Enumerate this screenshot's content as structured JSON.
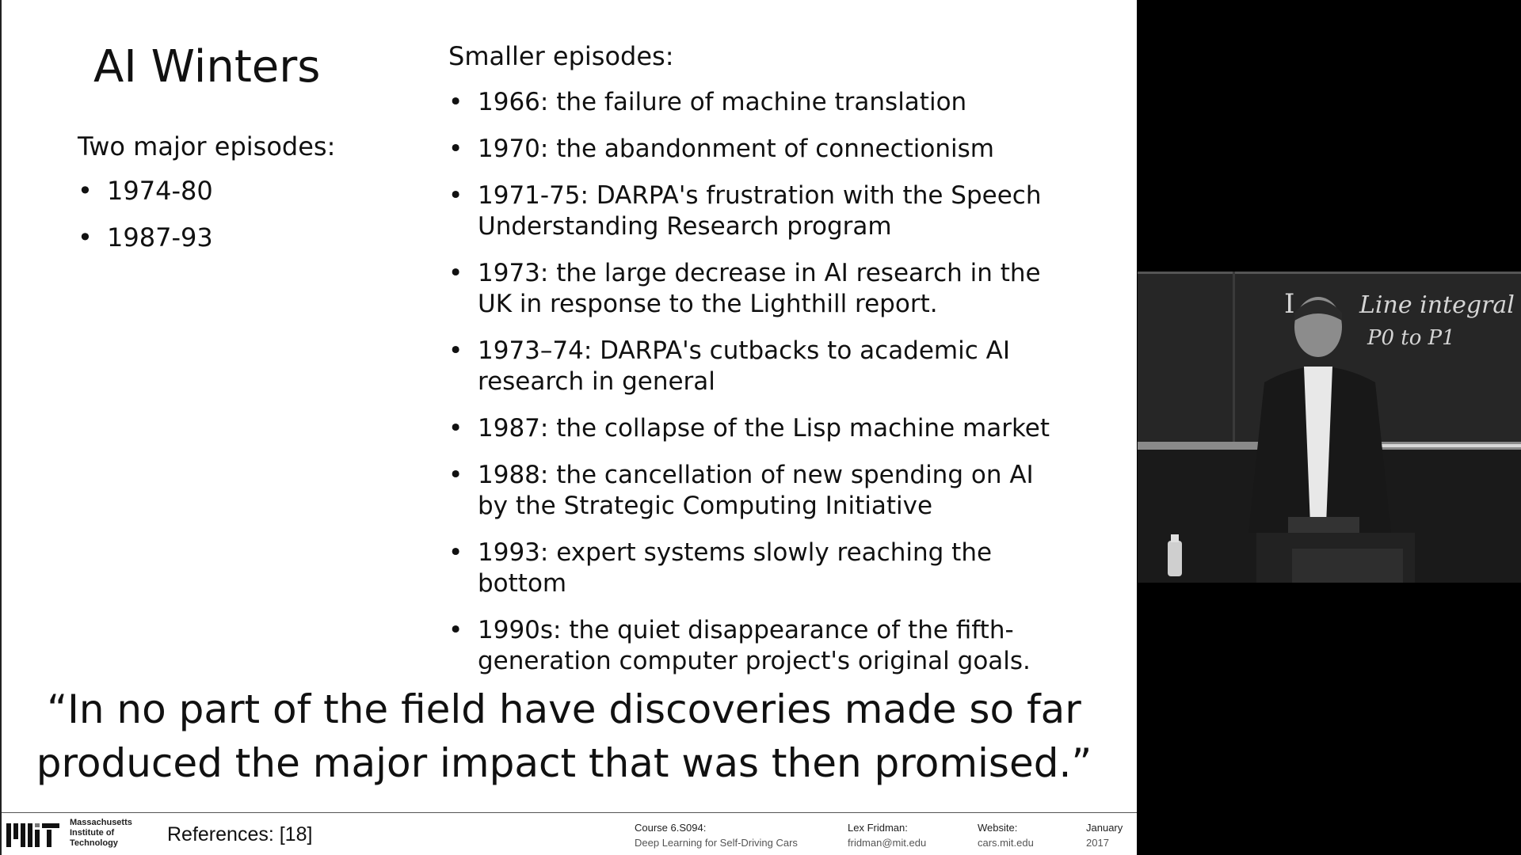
{
  "slide": {
    "title": "AI Winters",
    "left_heading": "Two major episodes:",
    "major_episodes": [
      "1974-80",
      "1987-93"
    ],
    "right_heading": "Smaller episodes:",
    "smaller_episodes": [
      "1966: the failure of machine translation",
      "1970: the abandonment of connectionism",
      "1971-75: DARPA's frustration with the Speech Understanding Research program",
      "1973: the large decrease in AI research in the UK in response to the Lighthill report.",
      "1973–74: DARPA's cutbacks to academic AI research in general",
      "1987: the collapse of the Lisp machine market",
      "1988: the cancellation of new spending on AI by the Strategic Computing Initiative",
      "1993: expert systems slowly reaching the bottom",
      "1990s: the quiet disappearance of the fifth-generation computer project's original goals."
    ],
    "quote": "“In no part of the field have discoveries made so far produced the major impact that was then promised.”"
  },
  "footer": {
    "institute_lines": [
      "Massachusetts",
      "Institute of",
      "Technology"
    ],
    "references": "References: [18]",
    "course_label": "Course 6.S094:",
    "course_name": "Deep Learning for Self-Driving Cars",
    "author_label": "Lex Fridman:",
    "author_email": "fridman@mit.edu",
    "website_label": "Website:",
    "website_url": "cars.mit.edu",
    "date_month": "January",
    "date_year": "2017"
  },
  "video": {
    "board_text_1": "Line integral o",
    "board_text_2": "P0 to P1"
  },
  "colors": {
    "slide_background": "#ffffff",
    "frame_background": "#000000",
    "text": "#111111"
  }
}
